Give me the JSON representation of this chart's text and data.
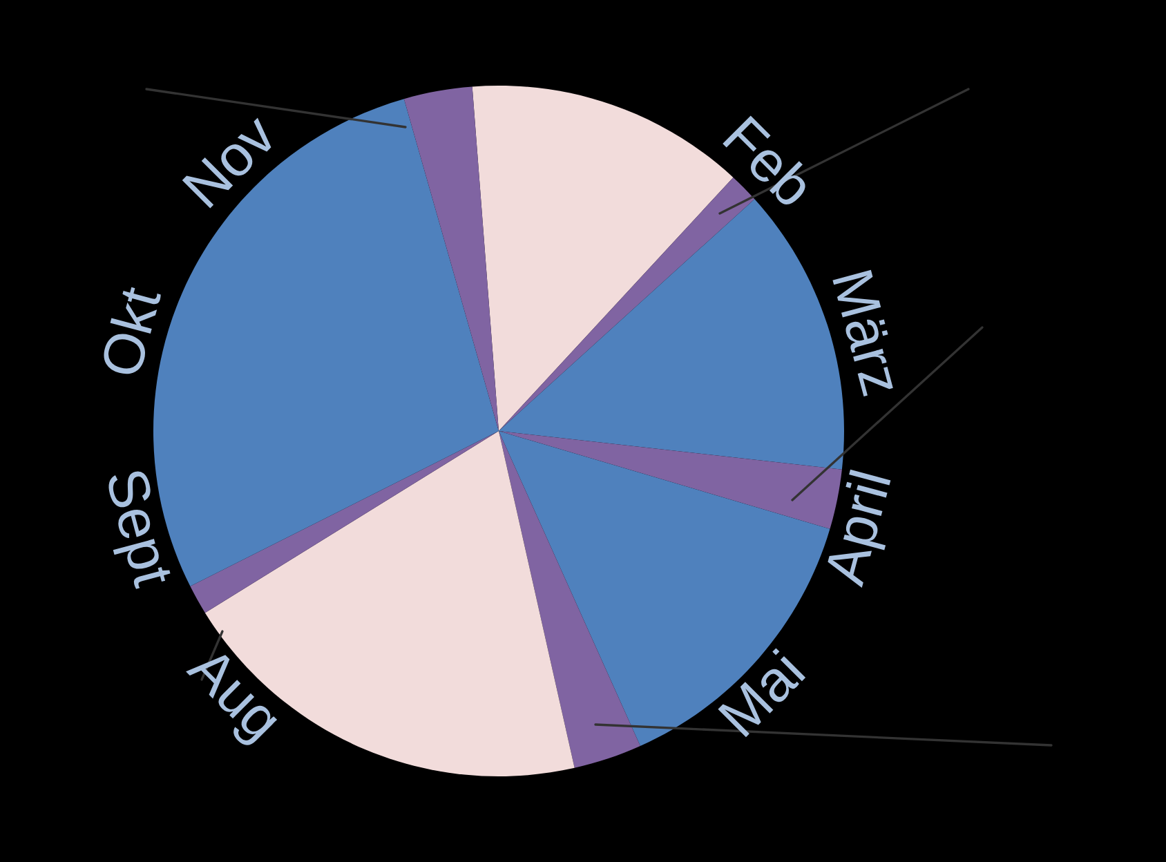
{
  "chart_data": {
    "type": "pie",
    "categories": [
      null,
      null,
      null,
      null,
      null,
      null,
      null,
      null,
      null,
      null
    ],
    "values": [
      13.1,
      1.4,
      13.5,
      2.8,
      13.7,
      3.2,
      19.7,
      1.4,
      28.0,
      3.2
    ],
    "colors": [
      "#f2dcdb",
      "#8064a2",
      "#4f81bd",
      "#8064a2",
      "#4f81bd",
      "#8064a2",
      "#f2dcdb",
      "#8064a2",
      "#4f81bd",
      "#8064a2"
    ],
    "annotations": [
      "Feb",
      "März",
      "April",
      "Mai",
      "Aug",
      "Sept",
      "Okt",
      "Nov"
    ]
  }
}
